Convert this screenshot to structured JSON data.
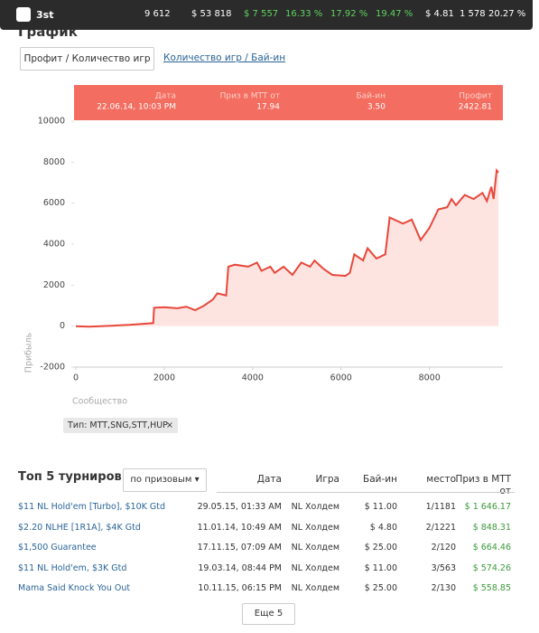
{
  "topbar": {
    "name": "3st",
    "stats": [
      "9 612",
      "$ 53 818",
      "$ 7 557",
      "16.33 %",
      "17.92 %",
      "19.47 %",
      "$ 4.81",
      "1 578",
      "20.27 %"
    ],
    "stat_colors": [
      "#ffffff",
      "#ffffff",
      "#5fd35f",
      "#5fd35f",
      "#5fd35f",
      "#5fd35f",
      "#ffffff",
      "#ffffff",
      "#ffffff"
    ]
  },
  "section_title": "График",
  "tabs": [
    "Профит / Количество игр",
    "Количество игр / Бай-ин"
  ],
  "chart_data": {
    "type": "line",
    "x": [
      0,
      300,
      800,
      1200,
      1600,
      1750,
      1770,
      2000,
      2300,
      2500,
      2700,
      2900,
      3100,
      3200,
      3400,
      3450,
      3600,
      3900,
      4100,
      4200,
      4400,
      4500,
      4700,
      4900,
      5100,
      5300,
      5400,
      5600,
      5800,
      6100,
      6200,
      6300,
      6500,
      6600,
      6800,
      7000,
      7100,
      7400,
      7600,
      7800,
      8000,
      8200,
      8400,
      8500,
      8600,
      8800,
      9000,
      9200,
      9300,
      9400,
      9450,
      9520,
      9560
    ],
    "series": [
      {
        "color": "#e8473a",
        "values": [
          0,
          -30,
          20,
          60,
          120,
          150,
          900,
          920,
          870,
          950,
          780,
          1000,
          1300,
          1600,
          1500,
          2900,
          3000,
          2900,
          3100,
          2700,
          2900,
          2600,
          2900,
          2500,
          3100,
          2900,
          3200,
          2800,
          2500,
          2450,
          2600,
          3500,
          3200,
          3800,
          3300,
          3500,
          5300,
          5000,
          5200,
          4200,
          4800,
          5700,
          5800,
          6200,
          5900,
          6400,
          6200,
          6500,
          6100,
          6800,
          6200,
          7600,
          7500
        ]
      }
    ],
    "xlim": [
      0,
      9600
    ],
    "ylim": [
      -2000,
      10000
    ],
    "xticks": [
      0,
      2000,
      4000,
      6000,
      8000
    ],
    "yticks": [
      -2000,
      0,
      2000,
      4000,
      6000,
      8000,
      10000
    ],
    "ylabel": "Прибыль",
    "xlabel": "Сообщество",
    "fill_color": "#fde4e1",
    "tooltip": {
      "labels": [
        "Дата",
        "Приз в MTT от",
        "Бай-ин",
        "Профит"
      ],
      "values": [
        "22.06.14, 10:03 PM",
        "17.94",
        "3.50",
        "2422.81"
      ]
    }
  },
  "filter": "Тип: MTT,SNG,STT,HUP",
  "table": {
    "title": "Топ 5 турниров",
    "sort": "по призовым",
    "columns": [
      "Дата",
      "Игра",
      "Бай-ин",
      "место",
      "Приз в MTT от"
    ],
    "rows": [
      [
        "$11 NL Hold'em [Turbo], $10K Gtd",
        "29.05.15, 01:33 AM",
        "NL Холдем",
        "$ 11.00",
        "1/1181",
        "$ 1 646.17"
      ],
      [
        "$2.20 NLHE [1R1A], $4K Gtd",
        "11.01.14, 10:49 AM",
        "NL Холдем",
        "$ 4.80",
        "2/1221",
        "$ 848.31"
      ],
      [
        "$1,500 Guarantee",
        "17.11.15, 07:09 AM",
        "NL Холдем",
        "$ 25.00",
        "2/120",
        "$ 664.46"
      ],
      [
        "$11 NL Hold'em, $3K Gtd",
        "19.03.14, 08:44 PM",
        "NL Холдем",
        "$ 11.00",
        "3/563",
        "$ 574.26"
      ],
      [
        "Mama Said Knock You Out",
        "10.11.15, 06:15 PM",
        "NL Холдем",
        "$ 25.00",
        "2/130",
        "$ 558.85"
      ]
    ],
    "more": "Еще 5"
  }
}
